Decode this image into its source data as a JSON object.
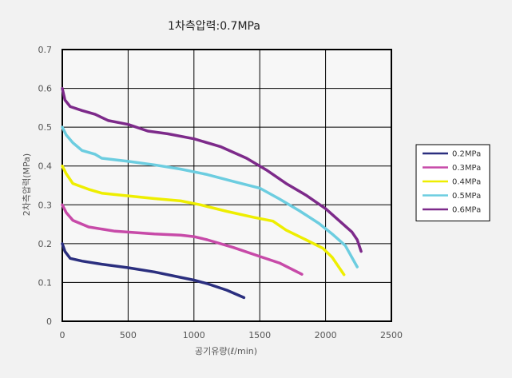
{
  "chart_data": {
    "type": "line",
    "title": "1차측압력:0.7MPa",
    "xlabel": "공기유량(ℓ/min)",
    "ylabel": "2차측압력(MPa)",
    "xlim": [
      0,
      2500
    ],
    "ylim": [
      0,
      0.7
    ],
    "xticks": [
      "0",
      "500",
      "1000",
      "1500",
      "2000",
      "2500"
    ],
    "yticks": [
      "0",
      "0.1",
      "0.2",
      "0.3",
      "0.4",
      "0.5",
      "0.6",
      "0.7"
    ],
    "grid": true,
    "legend_position": "right",
    "series": [
      {
        "name": "0.2MPa",
        "color": "#2b2f7f",
        "points": [
          [
            0,
            0.2
          ],
          [
            20,
            0.18
          ],
          [
            60,
            0.162
          ],
          [
            150,
            0.155
          ],
          [
            300,
            0.147
          ],
          [
            500,
            0.138
          ],
          [
            700,
            0.127
          ],
          [
            900,
            0.113
          ],
          [
            1000,
            0.106
          ],
          [
            1100,
            0.097
          ],
          [
            1250,
            0.08
          ],
          [
            1380,
            0.061
          ]
        ]
      },
      {
        "name": "0.3MPa",
        "color": "#c74aa8",
        "points": [
          [
            0,
            0.3
          ],
          [
            30,
            0.28
          ],
          [
            80,
            0.26
          ],
          [
            200,
            0.243
          ],
          [
            400,
            0.232
          ],
          [
            700,
            0.225
          ],
          [
            900,
            0.222
          ],
          [
            1000,
            0.218
          ],
          [
            1100,
            0.21
          ],
          [
            1300,
            0.19
          ],
          [
            1500,
            0.167
          ],
          [
            1650,
            0.15
          ],
          [
            1820,
            0.121
          ]
        ]
      },
      {
        "name": "0.4MPa",
        "color": "#eeee00",
        "points": [
          [
            0,
            0.4
          ],
          [
            30,
            0.38
          ],
          [
            80,
            0.355
          ],
          [
            200,
            0.34
          ],
          [
            300,
            0.33
          ],
          [
            500,
            0.323
          ],
          [
            700,
            0.316
          ],
          [
            900,
            0.31
          ],
          [
            1050,
            0.3
          ],
          [
            1250,
            0.283
          ],
          [
            1450,
            0.268
          ],
          [
            1600,
            0.258
          ],
          [
            1700,
            0.235
          ],
          [
            1850,
            0.21
          ],
          [
            1980,
            0.188
          ],
          [
            2050,
            0.165
          ],
          [
            2140,
            0.12
          ]
        ]
      },
      {
        "name": "0.5MPa",
        "color": "#6ccde0",
        "points": [
          [
            0,
            0.5
          ],
          [
            30,
            0.48
          ],
          [
            80,
            0.46
          ],
          [
            150,
            0.44
          ],
          [
            250,
            0.43
          ],
          [
            300,
            0.42
          ],
          [
            500,
            0.412
          ],
          [
            700,
            0.403
          ],
          [
            900,
            0.392
          ],
          [
            1100,
            0.378
          ],
          [
            1300,
            0.36
          ],
          [
            1500,
            0.343
          ],
          [
            1650,
            0.315
          ],
          [
            1800,
            0.285
          ],
          [
            1950,
            0.252
          ],
          [
            2050,
            0.225
          ],
          [
            2150,
            0.195
          ],
          [
            2240,
            0.14
          ]
        ]
      },
      {
        "name": "0.6MPa",
        "color": "#7d2a8a",
        "points": [
          [
            0,
            0.6
          ],
          [
            20,
            0.57
          ],
          [
            60,
            0.553
          ],
          [
            150,
            0.543
          ],
          [
            250,
            0.533
          ],
          [
            350,
            0.517
          ],
          [
            500,
            0.507
          ],
          [
            650,
            0.49
          ],
          [
            800,
            0.483
          ],
          [
            1000,
            0.47
          ],
          [
            1200,
            0.45
          ],
          [
            1400,
            0.42
          ],
          [
            1550,
            0.39
          ],
          [
            1700,
            0.355
          ],
          [
            1850,
            0.325
          ],
          [
            2000,
            0.29
          ],
          [
            2100,
            0.26
          ],
          [
            2200,
            0.23
          ],
          [
            2240,
            0.21
          ],
          [
            2270,
            0.18
          ]
        ]
      }
    ]
  }
}
